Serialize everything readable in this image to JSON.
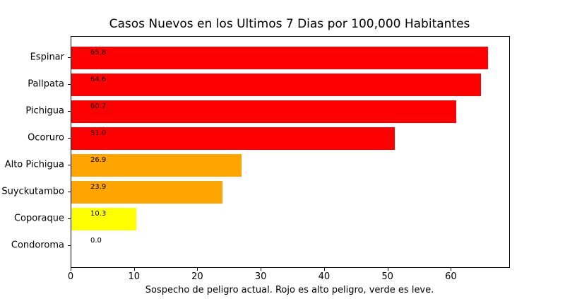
{
  "figure": {
    "title": "Casos Nuevos en los Ultimos 7 Dias por 100,000 Habitantes",
    "xlabel": "Sospecho de peligro actual. Rojo es alto peligro, verde es leve."
  },
  "chart_data": {
    "type": "bar",
    "orientation": "horizontal",
    "title": "Casos Nuevos en los Ultimos 7 Dias por 100,000 Habitantes",
    "xlabel": "Sospecho de peligro actual. Rojo es alto peligro, verde es leve.",
    "ylabel": "",
    "categories": [
      "Espinar",
      "Pallpata",
      "Pichigua",
      "Ocoruro",
      "Alto Pichigua",
      "Suyckutambo",
      "Coporaque",
      "Condoroma"
    ],
    "values": [
      65.8,
      64.6,
      60.7,
      51.0,
      26.9,
      23.9,
      10.3,
      0.0
    ],
    "value_labels": [
      "65.8",
      "64.6",
      "60.7",
      "51.0",
      "26.9",
      "23.9",
      "10.3",
      "0.0"
    ],
    "bar_colors": [
      "#ff0000",
      "#ff0000",
      "#ff0000",
      "#ff0000",
      "#ffa500",
      "#ffa500",
      "#ffff00",
      null
    ],
    "xlim": [
      0,
      69.1
    ],
    "x_ticks": [
      "0",
      "10",
      "20",
      "30",
      "40",
      "50",
      "60"
    ],
    "grid": false,
    "legend": null,
    "background_color": "#ffffff",
    "axis_color": "#000000"
  }
}
